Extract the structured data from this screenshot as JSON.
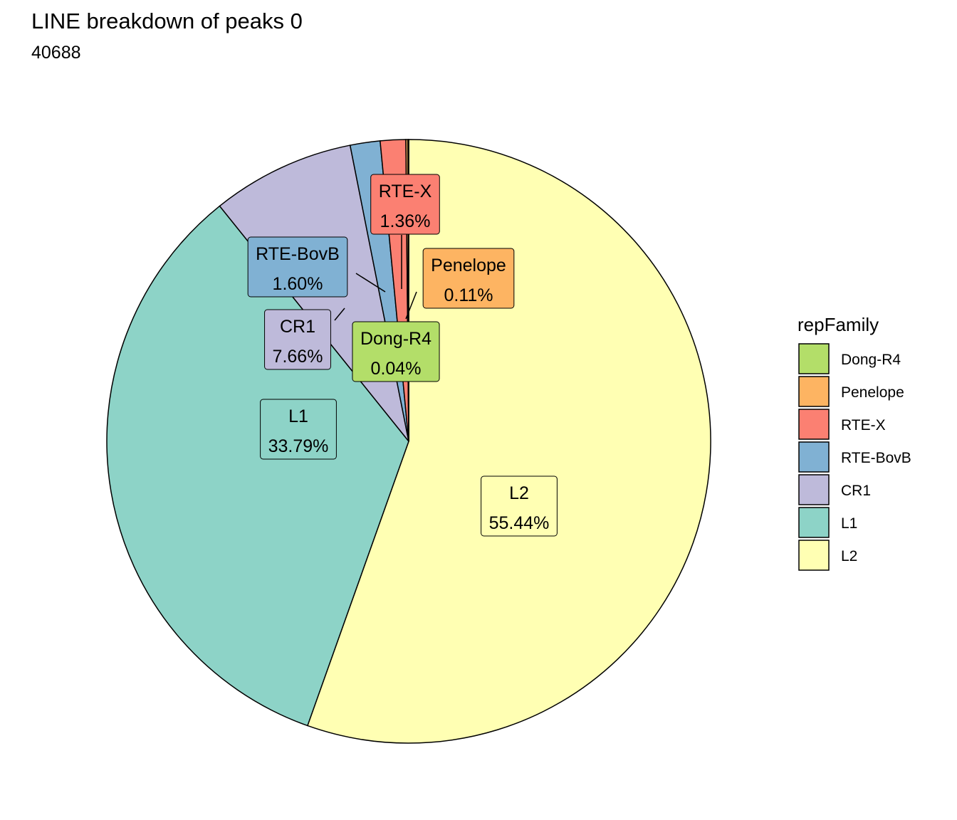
{
  "chart_data": {
    "type": "pie",
    "title": "LINE breakdown of peaks 0",
    "subtitle": "40688",
    "legend": {
      "title": "repFamily",
      "placement": "right",
      "order": [
        "Dong-R4",
        "Penelope",
        "RTE-X",
        "RTE-BovB",
        "CR1",
        "L1",
        "L2"
      ]
    },
    "slices": [
      {
        "name": "L2",
        "value": 55.44,
        "label": "55.44%",
        "color": "#FFFFB3"
      },
      {
        "name": "L1",
        "value": 33.79,
        "label": "33.79%",
        "color": "#8DD3C7"
      },
      {
        "name": "CR1",
        "value": 7.66,
        "label": "7.66%",
        "color": "#BEBADA"
      },
      {
        "name": "RTE-BovB",
        "value": 1.6,
        "label": "1.60%",
        "color": "#80B1D3"
      },
      {
        "name": "RTE-X",
        "value": 1.36,
        "label": "1.36%",
        "color": "#FB8072"
      },
      {
        "name": "Penelope",
        "value": 0.11,
        "label": "0.11%",
        "color": "#FDB462"
      },
      {
        "name": "Dong-R4",
        "value": 0.04,
        "label": "0.04%",
        "color": "#B3DE69"
      }
    ]
  }
}
